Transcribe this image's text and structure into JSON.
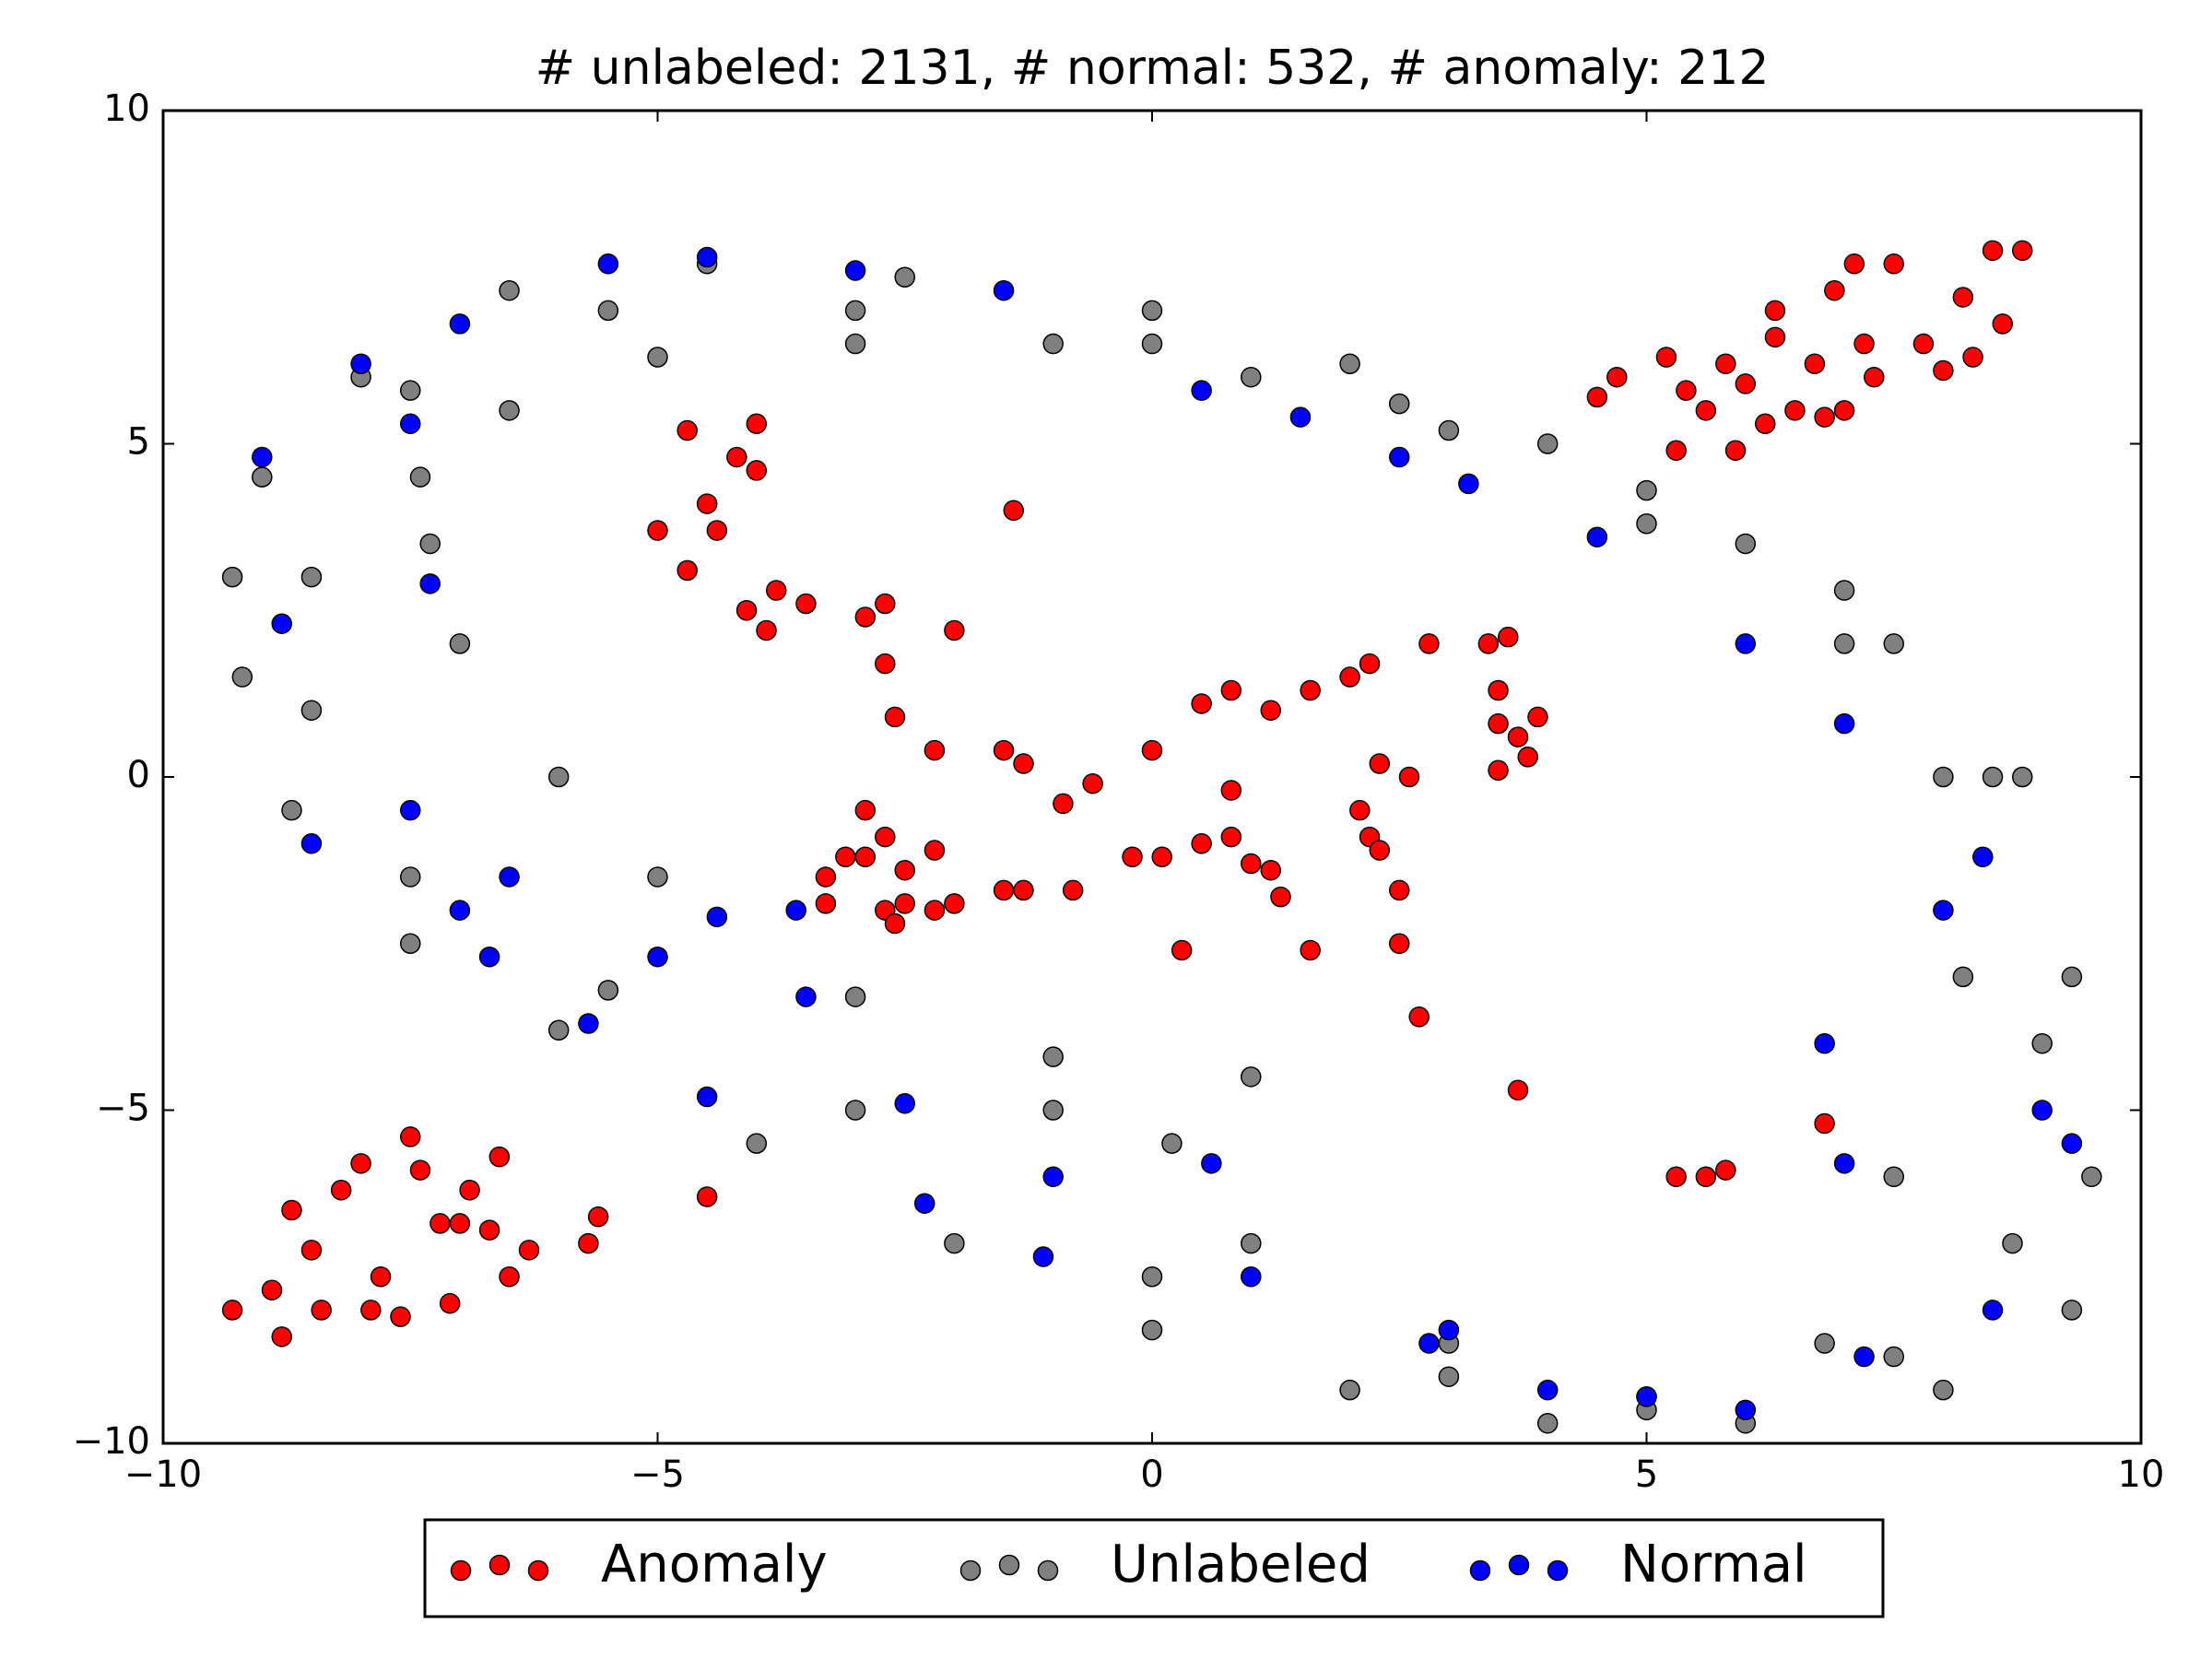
{
  "chart_data": {
    "type": "scatter",
    "title": "# unlabeled: 2131, # normal: 532, # anomaly: 212",
    "xlim": [
      -10,
      10
    ],
    "ylim": [
      -10,
      10
    ],
    "xticks": [
      {
        "value": -10,
        "label": "−10"
      },
      {
        "value": -5,
        "label": "−5"
      },
      0,
      5,
      10
    ],
    "yticks": [
      {
        "value": -10,
        "label": "−10"
      },
      {
        "value": -5,
        "label": "−5"
      },
      0,
      5,
      10
    ],
    "legend": "lower center outside",
    "series": [
      {
        "name": "Anomaly",
        "color": "#ff0000",
        "x": [
          4.5,
          4.7,
          5.2,
          5.4,
          5.3,
          5.6,
          5.9,
          6,
          6.2,
          6.3,
          6.5,
          6.7,
          6.9,
          7,
          7.1,
          7.2,
          7.5,
          7.8,
          8,
          8.2,
          8.3,
          8.5,
          8.8,
          6.3,
          7.3,
          8.6,
          5.8,
          6.8,
          -9.3,
          -8.9,
          -8.8,
          -8.7,
          -8.5,
          -8.4,
          -8.2,
          -8,
          -7.8,
          -7.6,
          -7.5,
          -7.4,
          -7.2,
          -7.1,
          -6.9,
          -6.7,
          -6.6,
          -6.5,
          -6.3,
          -5.6,
          -5.7,
          -4.5,
          -7.9,
          -7,
          -4.7,
          -4,
          -4.2,
          -4,
          -4.5,
          -5,
          -4.4,
          -4.7,
          -4.1,
          -3.8,
          -3.9,
          -3.5,
          -2.9,
          -2.7,
          -2.7,
          -2.6,
          -1.4,
          -2,
          -2.2,
          -1.5,
          -1.3,
          -0.9,
          -0.6,
          0,
          0.5,
          0.8,
          1.2,
          1.6,
          2,
          2.2,
          2.8,
          3.4,
          3.6,
          3.5,
          3.5,
          3.7,
          3.9,
          3.5,
          3.8,
          2.3,
          2.6,
          0.8,
          2.1,
          2.2,
          2.3,
          2.5,
          2.5,
          2.7,
          3.7,
          0.3,
          1.6,
          1.3,
          1.2,
          1,
          0.8,
          0.5,
          0.1,
          -0.2,
          -0.8,
          -1.3,
          -1.5,
          -2,
          -2.2,
          -2.2,
          -2.5,
          -2.7,
          -2.6,
          -2.9,
          -3.1,
          -3.3,
          -3.3,
          -2.9,
          -2.7,
          -2.5,
          5.3,
          5.6,
          5.8,
          6.8
        ],
        "values": [
          5.7,
          6,
          6.3,
          5.8,
          4.9,
          5.5,
          4.9,
          5.9,
          5.3,
          6.6,
          5.5,
          6.2,
          7.3,
          5.5,
          7.7,
          6.5,
          7.7,
          6.5,
          6.1,
          7.2,
          6.3,
          7.9,
          7.9,
          7,
          6,
          6.8,
          6.2,
          5.4,
          -8,
          -7.7,
          -8.4,
          -6.5,
          -7.1,
          -8,
          -6.2,
          -5.8,
          -7.5,
          -8.1,
          -5.4,
          -5.9,
          -6.7,
          -7.9,
          -6.2,
          -6.8,
          -5.7,
          -7.5,
          -7.1,
          -6.6,
          -7,
          -6.3,
          -8,
          -6.7,
          5.2,
          5.3,
          4.8,
          4.6,
          4.1,
          3.7,
          3.7,
          3.1,
          2.5,
          2.8,
          2.2,
          2.6,
          2.4,
          2.6,
          1.7,
          0.9,
          4,
          2.2,
          0.4,
          0.4,
          0.2,
          -0.4,
          -0.1,
          0.4,
          1.1,
          1.3,
          1,
          1.3,
          1.5,
          1.7,
          2,
          2,
          2.1,
          1.3,
          0.8,
          0.6,
          0.9,
          0.1,
          0.3,
          0.2,
          0,
          -0.2,
          -0.5,
          -0.9,
          -1.1,
          -1.7,
          -2.5,
          -3.6,
          -4.7,
          -2.6,
          -2.6,
          -1.8,
          -1.4,
          -1.3,
          -0.9,
          -1,
          -1.2,
          -1.2,
          -1.7,
          -1.7,
          -1.7,
          -1.9,
          -1.1,
          -2,
          -1.9,
          -2,
          -2.2,
          -1.2,
          -1.2,
          -1.5,
          -1.9,
          -0.5,
          -0.9,
          -1.4,
          -6,
          -6,
          -5.9,
          -5.2
        ]
      },
      {
        "name": "Unlabeled",
        "color": "#808080",
        "x": [
          -9.3,
          -9,
          -8,
          -6.5,
          -4.5,
          -2.5,
          0,
          2,
          4,
          6,
          7.5,
          8.5,
          9.3,
          9.5,
          9.3,
          8,
          6,
          4,
          2,
          0,
          -2,
          -4,
          -6,
          -7.5,
          -8.7,
          -9.2,
          -7.4,
          -6.5,
          -5,
          -3,
          -1,
          1,
          3,
          5,
          7,
          8,
          8.2,
          7.5,
          6.8,
          5,
          3,
          1,
          -1,
          -3,
          -5,
          -6,
          -7,
          -7.3,
          -8.5,
          -7.5,
          -5.5,
          -3,
          0,
          2.5,
          5,
          7,
          8.8,
          9,
          8.7,
          7.5,
          5,
          3,
          0,
          -3,
          -5.5,
          -7.5,
          -8.5,
          1,
          0.2,
          -1
        ],
        "values": [
          3,
          4.5,
          6,
          7.3,
          7.7,
          7.5,
          7,
          6.2,
          5,
          3.5,
          2,
          0,
          -3,
          -6,
          -8,
          -9.2,
          -9.7,
          -9.7,
          -9.2,
          -8.3,
          -7,
          -5.5,
          -3.8,
          -2.5,
          -0.5,
          1.5,
          4.5,
          5.5,
          6.3,
          6.5,
          6.5,
          6,
          5.2,
          3.8,
          2,
          0,
          -3,
          -6,
          -8.5,
          -9.3,
          -8.5,
          -7,
          -5,
          -3.3,
          -1.5,
          0,
          2,
          3.5,
          3,
          5.8,
          7,
          7,
          6.5,
          5.6,
          4.3,
          2.8,
          0,
          -4,
          -7,
          -8.7,
          -9.5,
          -9,
          -7.5,
          -5,
          -3.2,
          -1.5,
          1,
          -4.5,
          -5.5,
          -4.2
        ]
      },
      {
        "name": "Normal",
        "color": "#0000ff",
        "x": [
          -9,
          -8.8,
          -8,
          -7,
          -5.5,
          -4.5,
          -3,
          -1.5,
          0.5,
          2.5,
          4.5,
          6,
          7,
          8,
          8.4,
          9,
          9.3,
          8.5,
          7.2,
          6,
          5,
          3,
          1,
          -1,
          -2.5,
          -3.5,
          -5,
          -6.5,
          -7.5,
          -8.5,
          -7,
          -6.7,
          -5.7,
          -4.5,
          -1.1,
          -2.3,
          0.6,
          -7.5,
          -7.3,
          -3.6,
          2.8,
          4,
          6.8,
          7,
          -4.4,
          3.2,
          1.5
        ],
        "values": [
          4.8,
          2.3,
          6.2,
          6.8,
          7.7,
          7.8,
          7.6,
          7.3,
          5.8,
          4.8,
          3.6,
          2,
          0.8,
          -2,
          -1.2,
          -5,
          -5.5,
          -8,
          -8.7,
          -9.5,
          -9.3,
          -8.3,
          -7.5,
          -6,
          -4.9,
          -3.3,
          -2.7,
          -1.5,
          -0.5,
          -1,
          -2,
          -2.7,
          -3.7,
          -4.8,
          -7.2,
          -6.4,
          -5.8,
          5.3,
          2.9,
          -2,
          -8.5,
          -9.2,
          -4,
          -5.8,
          -2.1,
          4.4,
          5.4
        ]
      }
    ]
  }
}
